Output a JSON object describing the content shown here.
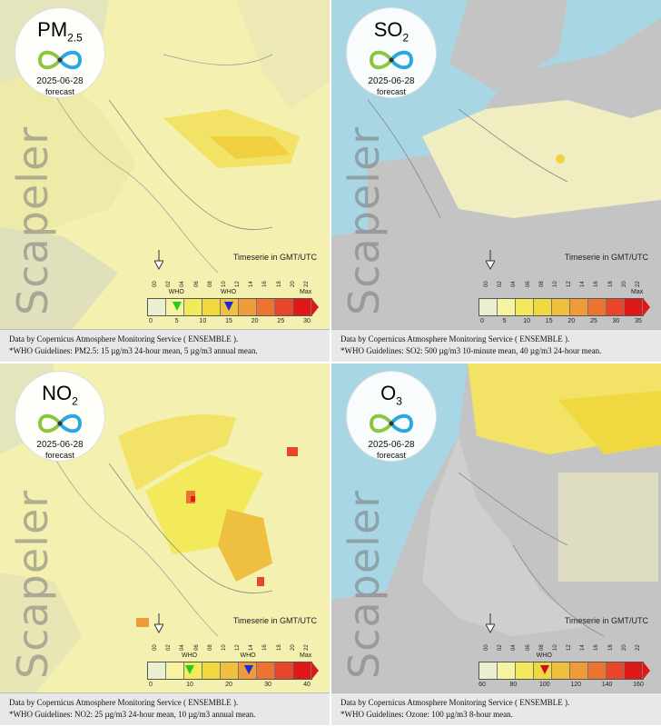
{
  "panels": [
    {
      "pollutant": "PM",
      "subscript": "2.5",
      "date": "2025-06-28",
      "forecast": "forecast",
      "watermark": "Scapeler",
      "timeserie": "Timeserie in GMT/UTC",
      "hours": [
        "00",
        "02",
        "04",
        "06",
        "08",
        "10",
        "12",
        "14",
        "16",
        "18",
        "20",
        "22"
      ],
      "ticks": [
        "0",
        "5",
        "10",
        "15",
        "20",
        "25",
        "30"
      ],
      "max": "Max",
      "who_labels": [
        "WHO",
        "WHO"
      ],
      "markers": [
        {
          "value": 5,
          "color": "#22cc22"
        },
        {
          "value": 15,
          "color": "#1a2ad8"
        }
      ],
      "footer1": "Data by Copernicus Atmosphere Monitoring Service ( ENSEMBLE ).",
      "footer2": "*WHO Guidelines: PM2.5: 15 µg/m3 24-hour mean, 5 µg/m3 annual mean."
    },
    {
      "pollutant": "SO",
      "subscript": "2",
      "date": "2025-06-28",
      "forecast": "forecast",
      "watermark": "Scapeler",
      "timeserie": "Timeserie in GMT/UTC",
      "hours": [
        "00",
        "02",
        "04",
        "06",
        "08",
        "10",
        "12",
        "14",
        "16",
        "18",
        "20",
        "22"
      ],
      "ticks": [
        "0",
        "5",
        "10",
        "15",
        "20",
        "25",
        "30",
        "35"
      ],
      "max": "Max",
      "who_labels": [],
      "markers": [],
      "footer1": "Data by Copernicus Atmosphere Monitoring Service ( ENSEMBLE ).",
      "footer2": "*WHO Guidelines: SO2: 500 µg/m3 10-minute mean, 40 µg/m3 24-hour mean."
    },
    {
      "pollutant": "NO",
      "subscript": "2",
      "date": "2025-06-28",
      "forecast": "forecast",
      "watermark": "Scapeler",
      "timeserie": "Timeserie in GMT/UTC",
      "hours": [
        "00",
        "02",
        "04",
        "06",
        "08",
        "10",
        "12",
        "14",
        "16",
        "18",
        "20",
        "22"
      ],
      "ticks": [
        "0",
        "10",
        "20",
        "30",
        "40"
      ],
      "max": "Max",
      "who_labels": [
        "WHO",
        "WHO"
      ],
      "markers": [
        {
          "value": 10,
          "color": "#22cc22"
        },
        {
          "value": 25,
          "color": "#1a2ad8"
        }
      ],
      "footer1": "Data by Copernicus Atmosphere Monitoring Service ( ENSEMBLE ).",
      "footer2": "*WHO Guidelines: NO2: 25 µg/m3 24-hour mean, 10 µg/m3 annual mean."
    },
    {
      "pollutant": "O",
      "subscript": "3",
      "date": "2025-06-28",
      "forecast": "forecast",
      "watermark": "Scapeler",
      "timeserie": "Timeserie in GMT/UTC",
      "hours": [
        "00",
        "02",
        "04",
        "06",
        "08",
        "10",
        "12",
        "14",
        "16",
        "18",
        "20",
        "22"
      ],
      "ticks": [
        "60",
        "80",
        "100",
        "120",
        "140",
        "160"
      ],
      "max": "",
      "who_labels": [
        "WHO"
      ],
      "markers": [
        {
          "value": 100,
          "color": "#cc1111"
        }
      ],
      "footer1": "Data by Copernicus Atmosphere Monitoring Service ( ENSEMBLE ).",
      "footer2": "*WHO Guidelines: Ozone: 100 µg/m3 8-hour mean."
    }
  ],
  "colors": {
    "sea": "#a9d6e5",
    "land_grey": "#c4c4c4",
    "pale_yellow": "#f4f0b0",
    "yellow": "#f2e266",
    "orange": "#f0a040",
    "red": "#e83020",
    "scale": [
      "#e8f0d0",
      "#f6f4a0",
      "#f2ea5a",
      "#f0d840",
      "#efc040",
      "#ee9c3a",
      "#ec7432",
      "#e8462a",
      "#e01818"
    ]
  }
}
